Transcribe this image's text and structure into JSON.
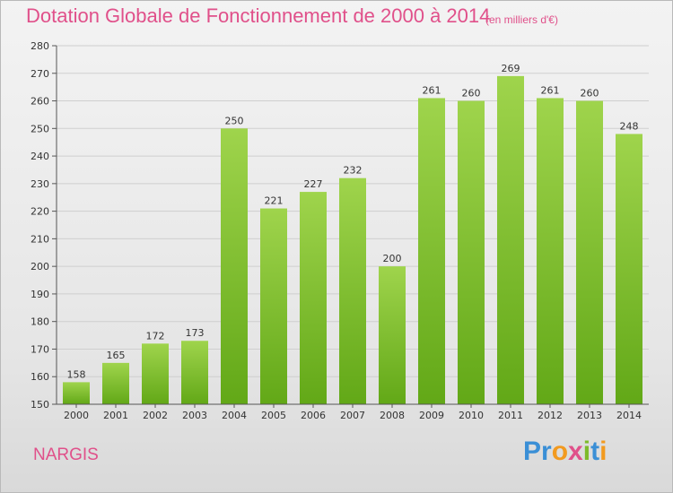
{
  "title": "Dotation Globale de Fonctionnement de 2000 à 2014",
  "subtitle": "(en milliers d'€)",
  "commune": "NARGIS",
  "logo": {
    "text": "Proxiti",
    "colors": [
      "#3a8fd6",
      "#f29a1f",
      "#e0508a",
      "#7dbb2a"
    ]
  },
  "colors": {
    "bar_light": "#9fd44c",
    "bar_dark": "#62a817",
    "title": "#e0508a",
    "grid": "#cfcfcf"
  },
  "chart_data": {
    "type": "bar",
    "categories": [
      "2000",
      "2001",
      "2002",
      "2003",
      "2004",
      "2005",
      "2006",
      "2007",
      "2008",
      "2009",
      "2010",
      "2011",
      "2012",
      "2013",
      "2014"
    ],
    "values": [
      158,
      165,
      172,
      173,
      250,
      221,
      227,
      232,
      200,
      261,
      260,
      269,
      261,
      260,
      248
    ],
    "ylim": [
      150,
      280
    ],
    "yticks": [
      150,
      160,
      170,
      180,
      190,
      200,
      210,
      220,
      230,
      240,
      250,
      260,
      270,
      280
    ],
    "grid": true,
    "data_labels": true
  }
}
